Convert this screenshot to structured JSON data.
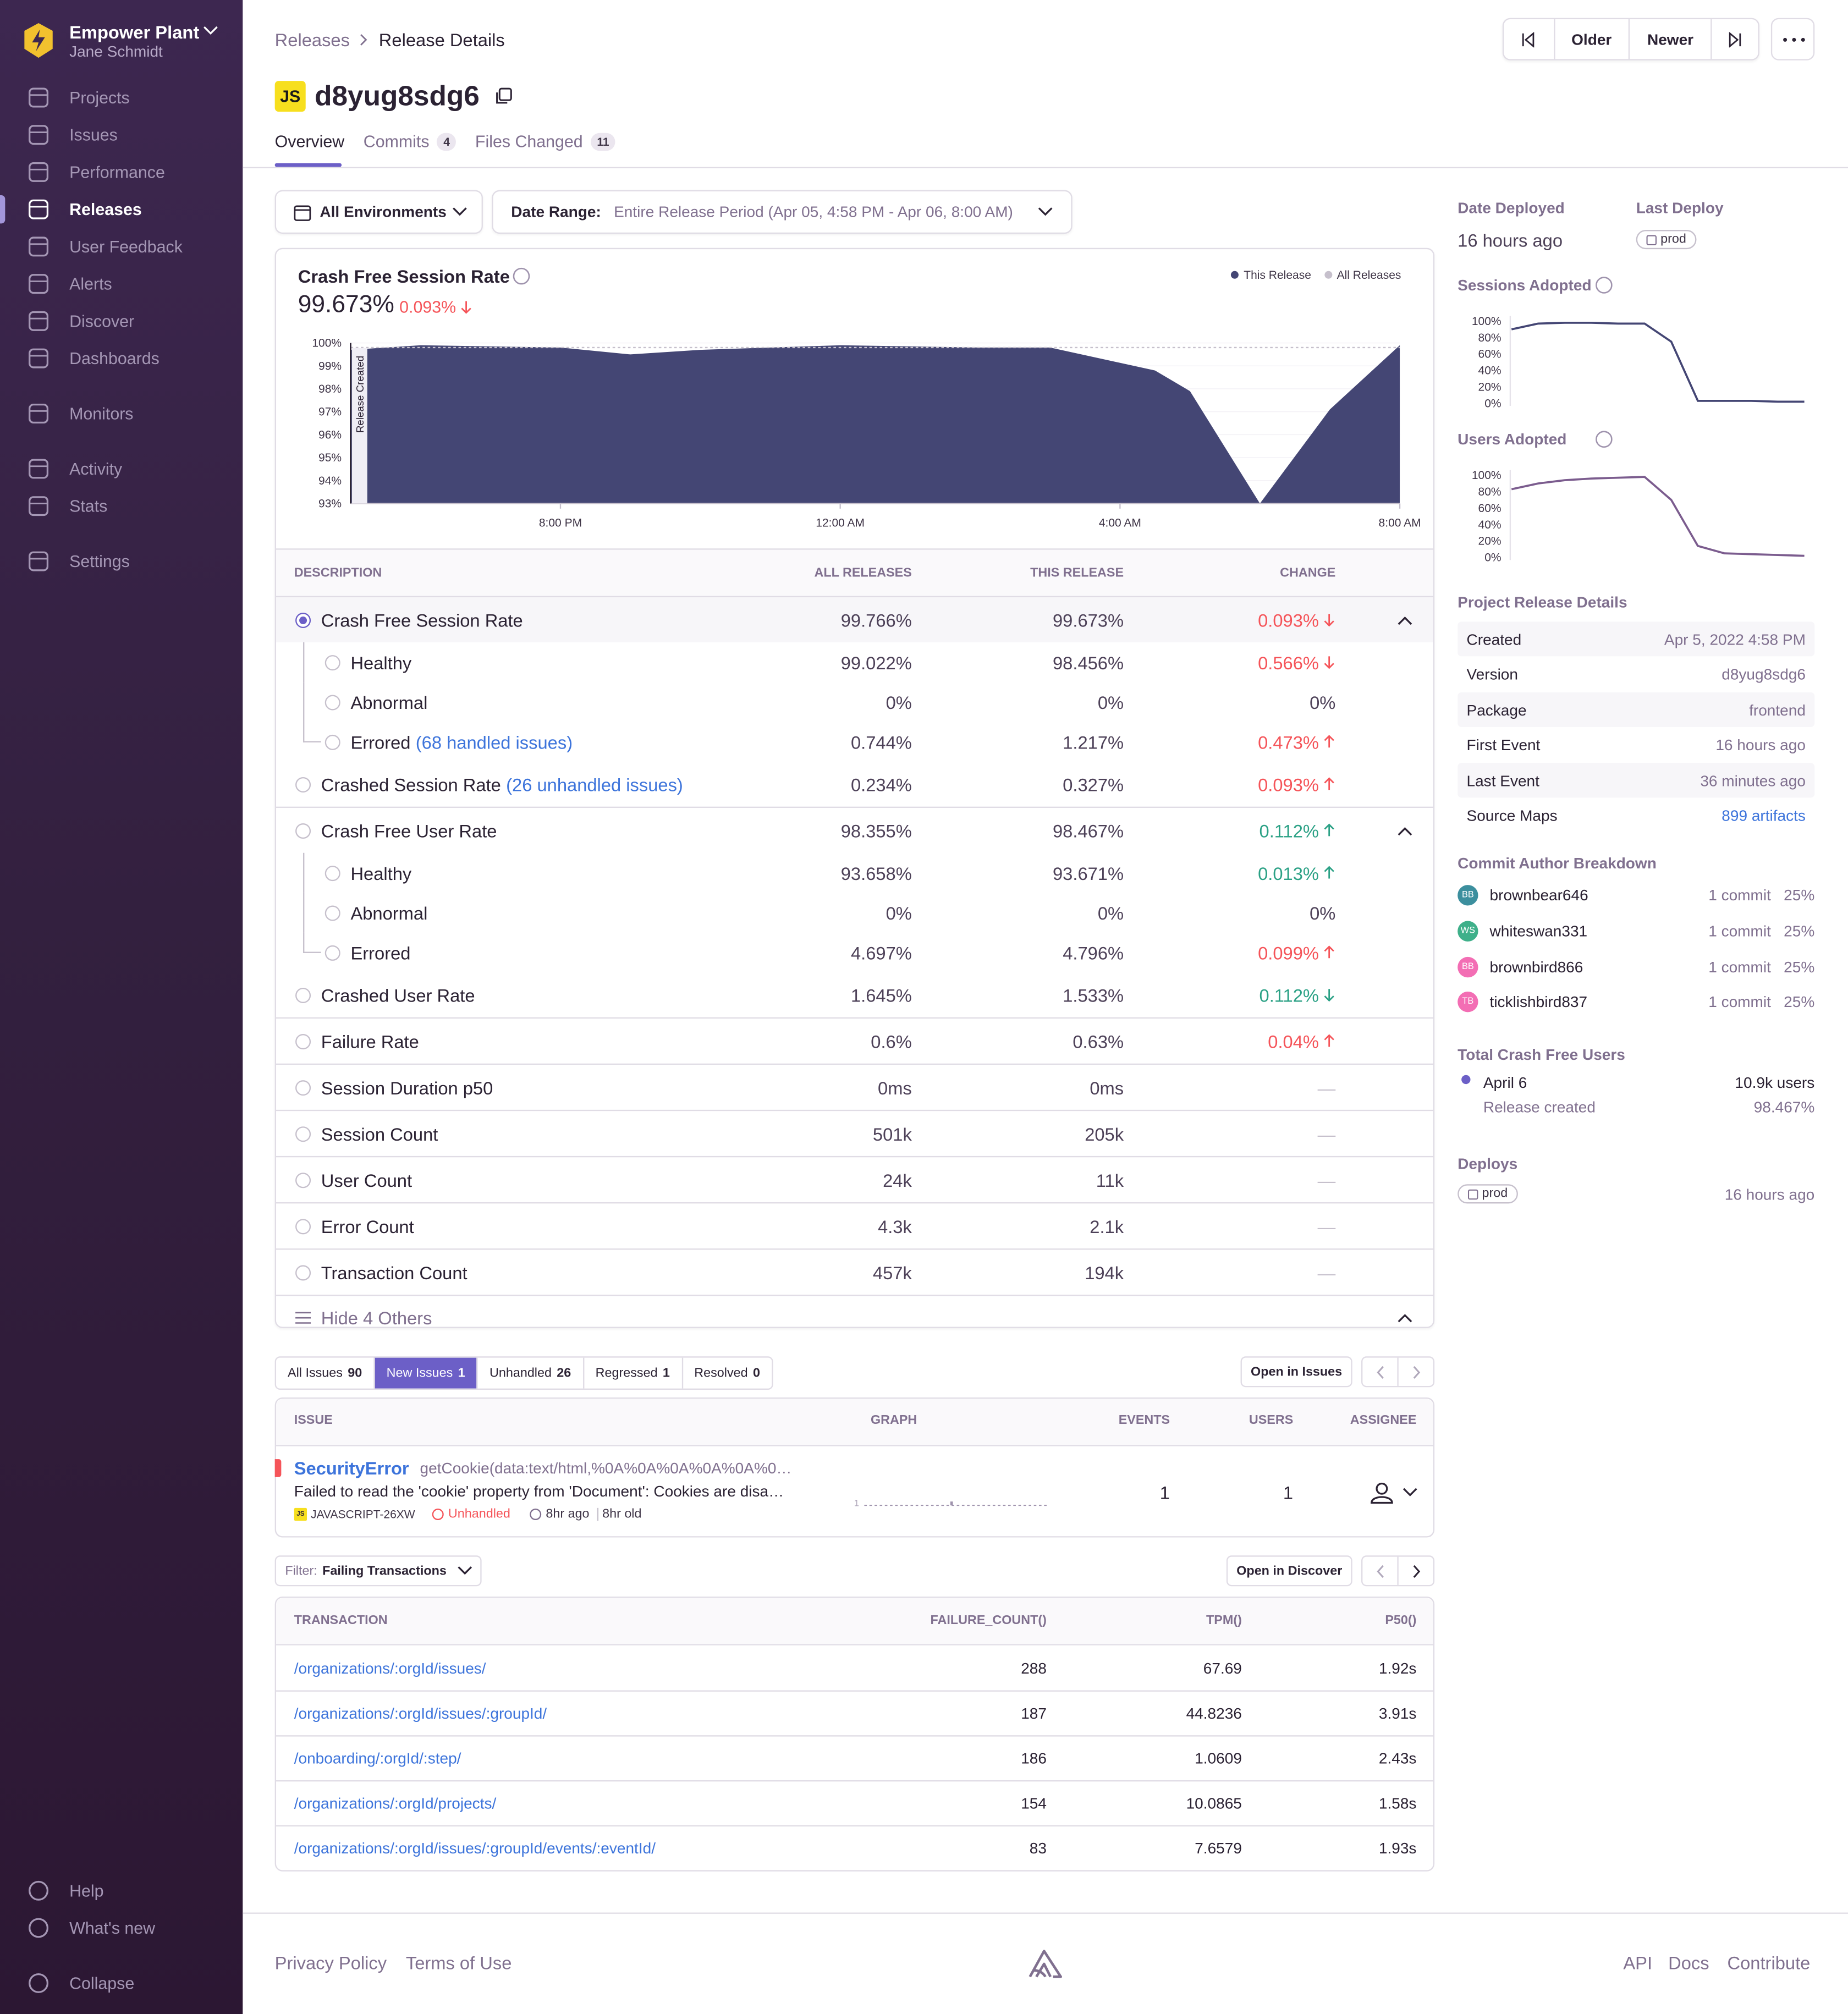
{
  "sidebar": {
    "org": "Empower Plant",
    "user": "Jane Schmidt",
    "nav": [
      [
        "Projects",
        "Issues",
        "Performance",
        "Releases",
        "User Feedback",
        "Alerts",
        "Discover",
        "Dashboards"
      ],
      [
        "Monitors"
      ],
      [
        "Activity",
        "Stats"
      ],
      [
        "Settings"
      ]
    ],
    "bottom": [
      "Help",
      "What's new",
      "Collapse"
    ]
  },
  "header": {
    "breadcrumbs": [
      "Releases",
      "Release Details"
    ],
    "pager": [
      "Older",
      "Newer"
    ],
    "badge": "JS",
    "version": "d8yug8sdg6",
    "tabs": [
      {
        "label": "Overview"
      },
      {
        "label": "Commits",
        "count": 4
      },
      {
        "label": "Files Changed",
        "count": 11
      }
    ]
  },
  "filters": {
    "environment": "All Environments",
    "date_label": "Date Range:",
    "date_value": "Entire Release Period (Apr 05, 4:58 PM - Apr 06, 8:00 AM)"
  },
  "crash_chart": {
    "type": "area",
    "title": "Crash Free Session Rate",
    "value": "99.673%",
    "change": "0.093%",
    "change_color": "#f55459",
    "marker": "Release Created",
    "x": [
      17,
      18,
      20,
      21,
      22,
      24,
      26,
      27,
      28.5,
      29,
      30,
      31,
      32
    ],
    "xlim": [
      17,
      32
    ],
    "xticks": [
      {
        "value": 20,
        "label": "8:00 PM"
      },
      {
        "value": 24,
        "label": "12:00 AM"
      },
      {
        "value": 28,
        "label": "4:00 AM"
      },
      {
        "value": 32,
        "label": "8:00 AM"
      }
    ],
    "ylim": [
      93,
      100
    ],
    "yticks": [
      {
        "value": 93,
        "label": "93%"
      },
      {
        "value": 94,
        "label": "94%"
      },
      {
        "value": 95,
        "label": "95%"
      },
      {
        "value": 96,
        "label": "96%"
      },
      {
        "value": 97,
        "label": "97%"
      },
      {
        "value": 98,
        "label": "98%"
      },
      {
        "value": 99,
        "label": "99%"
      },
      {
        "value": 100,
        "label": "100%"
      }
    ],
    "series": [
      {
        "name": "This Release",
        "color": "#444674",
        "values": [
          99.7,
          99.9,
          99.8,
          99.5,
          99.7,
          99.9,
          99.8,
          99.8,
          98.8,
          97.9,
          93.0,
          97.1,
          99.9
        ]
      },
      {
        "name": "All Releases",
        "color": "#c6c0cc",
        "values": [
          99.8,
          99.8,
          99.8,
          99.8,
          99.8,
          99.8,
          99.8,
          99.8,
          99.8,
          99.8,
          99.8,
          99.8,
          99.8
        ]
      }
    ]
  },
  "stats_table": {
    "columns": [
      "DESCRIPTION",
      "ALL RELEASES",
      "THIS RELEASE",
      "CHANGE"
    ],
    "sections": [
      [
        {
          "label": "Crash Free Session Rate",
          "all": "99.766%",
          "this": "99.673%",
          "change": "0.093%",
          "trend": "down",
          "color": "#f55459",
          "children": [
            {
              "label": "Healthy",
              "all": "99.022%",
              "this": "98.456%",
              "change": "0.566%",
              "trend": "down",
              "color": "#f55459"
            },
            {
              "label": "Abnormal",
              "all": "0%",
              "this": "0%",
              "change": "0%",
              "color": "#4d4158"
            },
            {
              "label": "Errored",
              "link": "(68 handled issues)",
              "all": "0.744%",
              "this": "1.217%",
              "change": "0.473%",
              "trend": "up",
              "color": "#f55459"
            }
          ]
        },
        {
          "label": "Crashed Session Rate",
          "link": "(26 unhandled issues)",
          "all": "0.234%",
          "this": "0.327%",
          "change": "0.093%",
          "trend": "up",
          "color": "#f55459"
        }
      ],
      [
        {
          "label": "Crash Free User Rate",
          "all": "98.355%",
          "this": "98.467%",
          "change": "0.112%",
          "trend": "up",
          "color": "#2ba185",
          "children": [
            {
              "label": "Healthy",
              "all": "93.658%",
              "this": "93.671%",
              "change": "0.013%",
              "trend": "up",
              "color": "#2ba185"
            },
            {
              "label": "Abnormal",
              "all": "0%",
              "this": "0%",
              "change": "0%",
              "color": "#4d4158"
            },
            {
              "label": "Errored",
              "all": "4.697%",
              "this": "4.796%",
              "change": "0.099%",
              "trend": "up",
              "color": "#f55459"
            }
          ]
        },
        {
          "label": "Crashed User Rate",
          "all": "1.645%",
          "this": "1.533%",
          "change": "0.112%",
          "trend": "down",
          "color": "#2ba185"
        }
      ],
      [
        {
          "label": "Failure Rate",
          "all": "0.6%",
          "this": "0.63%",
          "change": "0.04%",
          "trend": "up",
          "color": "#f55459"
        }
      ],
      [
        {
          "label": "Session Duration p50",
          "all": "0ms",
          "this": "0ms",
          "change": "—",
          "color": "#c6c0cc"
        }
      ],
      [
        {
          "label": "Session Count",
          "all": "501k",
          "this": "205k",
          "change": "—",
          "color": "#c6c0cc"
        }
      ],
      [
        {
          "label": "User Count",
          "all": "24k",
          "this": "11k",
          "change": "—",
          "color": "#c6c0cc"
        }
      ],
      [
        {
          "label": "Error Count",
          "all": "4.3k",
          "this": "2.1k",
          "change": "—",
          "color": "#c6c0cc"
        }
      ],
      [
        {
          "label": "Transaction Count",
          "all": "457k",
          "this": "194k",
          "change": "—",
          "color": "#c6c0cc"
        }
      ]
    ],
    "toggle": "Hide 4 Others"
  },
  "issues": {
    "tabs": [
      {
        "label": "All Issues",
        "count": 90
      },
      {
        "label": "New Issues",
        "count": 1
      },
      {
        "label": "Unhandled",
        "count": 26
      },
      {
        "label": "Regressed",
        "count": 1
      },
      {
        "label": "Resolved",
        "count": 0
      }
    ],
    "open": "Open in Issues",
    "columns": [
      "ISSUE",
      "GRAPH",
      "EVENTS",
      "USERS",
      "ASSIGNEE"
    ],
    "rows": [
      {
        "title": "SecurityError",
        "culprit": "getCookie(data:text/html,%0A%0A%0A%0A%0A%0…",
        "message": "Failed to read the 'cookie' property from 'Document': Cookies are disa…",
        "platform": "JS",
        "short_id": "JAVASCRIPT-26XW",
        "status": "Unhandled",
        "last_seen": "8hr ago",
        "age": "8hr old",
        "graph_max": 1,
        "events": 1,
        "users": 1
      }
    ]
  },
  "transactions": {
    "filter_label": "Filter:",
    "filter": "Failing Transactions",
    "open": "Open in Discover",
    "columns": [
      "TRANSACTION",
      "FAILURE_COUNT()",
      "TPM()",
      "P50()"
    ],
    "rows": [
      [
        "/organizations/:orgId/issues/",
        288,
        67.69,
        "1.92s"
      ],
      [
        "/organizations/:orgId/issues/:groupId/",
        187,
        44.8236,
        "3.91s"
      ],
      [
        "/onboarding/:orgId/:step/",
        186,
        1.0609,
        "2.43s"
      ],
      [
        "/organizations/:orgId/projects/",
        154,
        10.0865,
        "1.58s"
      ],
      [
        "/organizations/:orgId/issues/:groupId/events/:eventId/",
        83,
        7.6579,
        "1.93s"
      ]
    ]
  },
  "details": {
    "date_deployed": {
      "label": "Date Deployed",
      "value": "16 hours ago"
    },
    "last_deploy": {
      "label": "Last Deploy",
      "value": "prod"
    },
    "adoption": [
      {
        "type": "line",
        "title": "Sessions Adopted",
        "color": "#444674",
        "values": [
          90,
          97,
          98,
          98,
          97,
          97,
          75,
          3,
          3,
          3,
          2,
          2
        ],
        "ylim": [
          0,
          100
        ],
        "yticks": [
          {
            "value": 0,
            "label": "0%"
          },
          {
            "value": 20,
            "label": "20%"
          },
          {
            "value": 40,
            "label": "40%"
          },
          {
            "value": 60,
            "label": "60%"
          },
          {
            "value": 80,
            "label": "80%"
          },
          {
            "value": 100,
            "label": "100%"
          }
        ]
      },
      {
        "type": "line",
        "title": "Users Adopted",
        "color": "#7b5c8e",
        "values": [
          83,
          90,
          94,
          96,
          97,
          98,
          70,
          14,
          5,
          4,
          3,
          2
        ],
        "ylim": [
          0,
          100
        ],
        "yticks": [
          {
            "value": 0,
            "label": "0%"
          },
          {
            "value": 20,
            "label": "20%"
          },
          {
            "value": 40,
            "label": "40%"
          },
          {
            "value": 60,
            "label": "60%"
          },
          {
            "value": 80,
            "label": "80%"
          },
          {
            "value": 100,
            "label": "100%"
          }
        ]
      }
    ],
    "project": {
      "title": "Project Release Details",
      "rows": [
        [
          "Created",
          "Apr 5, 2022 4:58 PM"
        ],
        [
          "Version",
          "d8yug8sdg6"
        ],
        [
          "Package",
          "frontend"
        ],
        [
          "First Event",
          "16 hours ago"
        ],
        [
          "Last Event",
          "36 minutes ago"
        ],
        [
          "Source Maps",
          "899 artifacts"
        ]
      ]
    },
    "authors": {
      "title": "Commit Author Breakdown",
      "rows": [
        {
          "initials": "BB",
          "name": "brownbear646",
          "commits": "1 commit",
          "share": "25%",
          "color": "#3c8f9e"
        },
        {
          "initials": "WS",
          "name": "whiteswan331",
          "commits": "1 commit",
          "share": "25%",
          "color": "#3fb08a"
        },
        {
          "initials": "BB",
          "name": "brownbird866",
          "commits": "1 commit",
          "share": "25%",
          "color": "#f36eb4"
        },
        {
          "initials": "TB",
          "name": "ticklishbird837",
          "commits": "1 commit",
          "share": "25%",
          "color": "#f36eb4"
        }
      ]
    },
    "crash_free_users": {
      "title": "Total Crash Free Users",
      "date": "April 6",
      "users": "10.9k users",
      "note": "Release created",
      "rate": "98.467%"
    },
    "deploys": {
      "title": "Deploys",
      "env": "prod",
      "when": "16 hours ago"
    }
  },
  "footer": {
    "left": [
      "Privacy Policy",
      "Terms of Use"
    ],
    "right": [
      "API",
      "Docs",
      "Contribute"
    ]
  }
}
